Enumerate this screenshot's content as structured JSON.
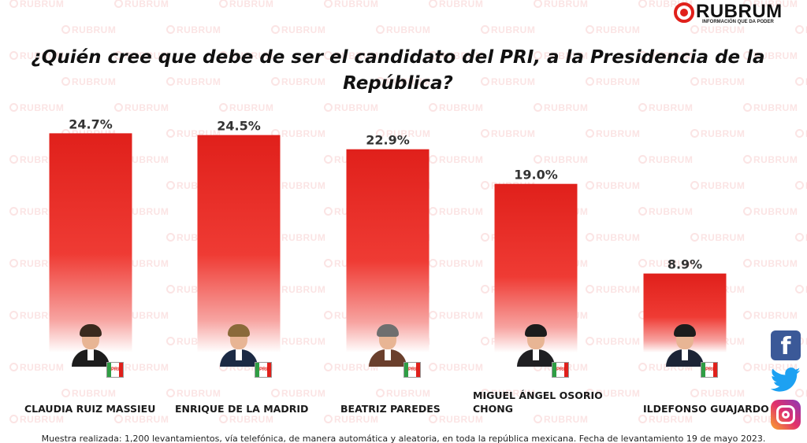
{
  "brand": {
    "name": "RUBRUM",
    "tagline": "INFORMACIÓN QUE DA PODER",
    "watermark": "RUBRUM",
    "accent_color": "#e0201b"
  },
  "chart_data": {
    "type": "bar",
    "title": "¿Quién cree que debe de ser el candidato del PRI, a la Presidencia de la República?",
    "categories": [
      "CLAUDIA RUIZ MASSIEU",
      "ENRIQUE DE LA MADRID",
      "BEATRIZ PAREDES",
      "MIGUEL ÁNGEL OSORIO CHONG",
      "ILDEFONSO GUAJARDO"
    ],
    "values": [
      24.7,
      24.5,
      22.9,
      19.0,
      8.9
    ],
    "data_labels": [
      "24.7%",
      "24.5%",
      "22.9%",
      "19.0%",
      "8.9%"
    ],
    "unit": "%",
    "ylim": [
      0,
      25
    ],
    "grid": false,
    "legend": "none",
    "bar_color": "#e0201b"
  },
  "candidates": [
    {
      "name_lines": [
        "CLAUDIA RUIZ MASSIEU"
      ],
      "party_badge": "PRI",
      "photo": "woman-portrait"
    },
    {
      "name_lines": [
        "ENRIQUE DE LA MADRID"
      ],
      "party_badge": "PRI",
      "photo": "man-portrait"
    },
    {
      "name_lines": [
        "BEATRIZ PAREDES"
      ],
      "party_badge": "PRI",
      "photo": "woman-portrait"
    },
    {
      "name_lines": [
        "MIGUEL ÁNGEL OSORIO",
        "CHONG"
      ],
      "party_badge": "PRI",
      "photo": "man-portrait"
    },
    {
      "name_lines": [
        "ILDEFONSO GUAJARDO"
      ],
      "party_badge": "PRI",
      "photo": "man-portrait"
    }
  ],
  "social": {
    "icons": [
      "facebook-icon",
      "twitter-icon",
      "instagram-icon"
    ],
    "facebook_glyph": "f"
  },
  "footnote": "Muestra realizada: 1,200 levantamientos, vía telefónica, de manera automática y aleatoria, en toda la república mexicana. Fecha de levantamiento 19 de mayo 2023."
}
